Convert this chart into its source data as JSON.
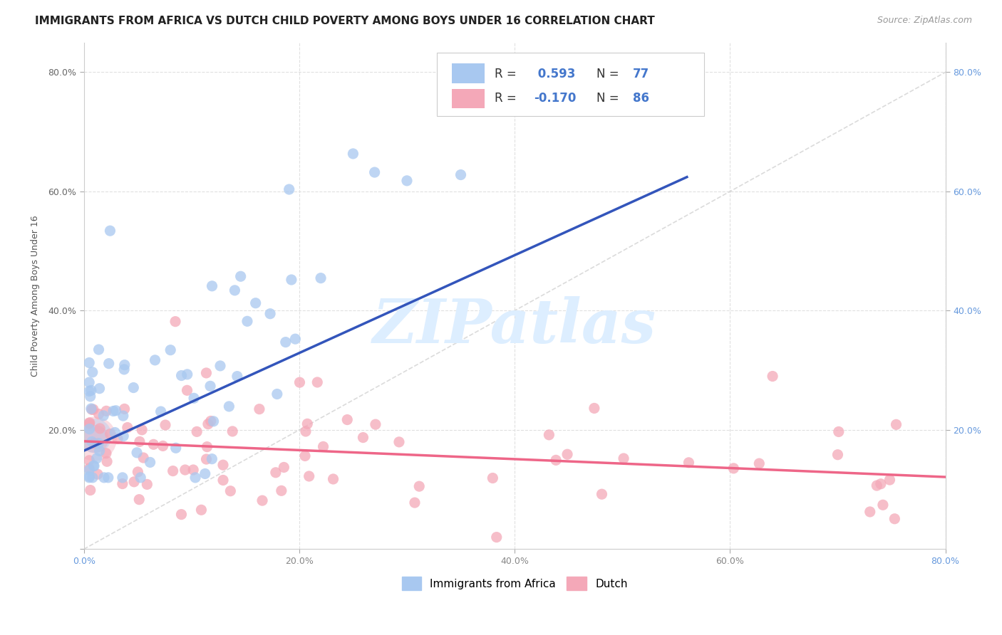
{
  "title": "IMMIGRANTS FROM AFRICA VS DUTCH CHILD POVERTY AMONG BOYS UNDER 16 CORRELATION CHART",
  "source": "Source: ZipAtlas.com",
  "ylabel": "Child Poverty Among Boys Under 16",
  "xlim": [
    0,
    0.8
  ],
  "ylim": [
    0,
    0.85
  ],
  "xticks": [
    0.0,
    0.2,
    0.4,
    0.6,
    0.8
  ],
  "yticks": [
    0.0,
    0.2,
    0.4,
    0.6,
    0.8
  ],
  "xtick_labels": [
    "0.0%",
    "20.0%",
    "40.0%",
    "60.0%",
    "80.0%"
  ],
  "ytick_labels": [
    "",
    "20.0%",
    "40.0%",
    "60.0%",
    "80.0%"
  ],
  "right_ytick_labels": [
    "20.0%",
    "40.0%",
    "60.0%",
    "80.0%"
  ],
  "blue_R": 0.593,
  "blue_N": 77,
  "pink_R": -0.17,
  "pink_N": 86,
  "blue_color": "#a8c8f0",
  "pink_color": "#f4a8b8",
  "blue_line_color": "#3355bb",
  "pink_line_color": "#ee6688",
  "diag_line_color": "#cccccc",
  "watermark_text": "ZIPatlas",
  "watermark_color": "#ddeeff",
  "grid_color": "#e0e0e0",
  "title_fontsize": 11,
  "axis_label_fontsize": 9,
  "tick_fontsize": 9,
  "source_fontsize": 9
}
